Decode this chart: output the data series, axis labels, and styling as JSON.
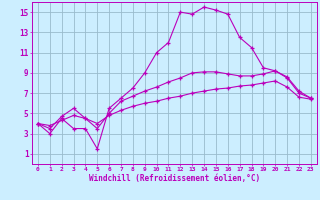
{
  "xlabel": "Windchill (Refroidissement éolien,°C)",
  "bg_color": "#cceeff",
  "grid_color": "#99bbcc",
  "line_color": "#bb00bb",
  "x_ticks": [
    0,
    1,
    2,
    3,
    4,
    5,
    6,
    7,
    8,
    9,
    10,
    11,
    12,
    13,
    14,
    15,
    16,
    17,
    18,
    19,
    20,
    21,
    22,
    23
  ],
  "y_ticks": [
    1,
    3,
    5,
    7,
    9,
    11,
    13,
    15
  ],
  "ylim": [
    0.0,
    16.0
  ],
  "xlim": [
    -0.5,
    23.5
  ],
  "line1_x": [
    0,
    1,
    2,
    3,
    4,
    5,
    6,
    7,
    8,
    9,
    10,
    11,
    12,
    13,
    14,
    15,
    16,
    17,
    18,
    19,
    20,
    21,
    22,
    23
  ],
  "line1_y": [
    4.0,
    3.0,
    4.5,
    3.5,
    3.5,
    1.5,
    5.5,
    6.5,
    7.5,
    9.0,
    11.0,
    12.0,
    15.0,
    14.8,
    15.5,
    15.2,
    14.8,
    12.5,
    11.5,
    9.5,
    9.2,
    8.5,
    7.0,
    6.5
  ],
  "line2_x": [
    0,
    1,
    2,
    3,
    4,
    5,
    6,
    7,
    8,
    9,
    10,
    11,
    12,
    13,
    14,
    15,
    16,
    17,
    18,
    19,
    20,
    21,
    22,
    23
  ],
  "line2_y": [
    4.0,
    3.5,
    4.7,
    5.5,
    4.5,
    3.5,
    5.0,
    6.2,
    6.7,
    7.2,
    7.6,
    8.1,
    8.5,
    9.0,
    9.1,
    9.1,
    8.9,
    8.7,
    8.7,
    8.9,
    9.2,
    8.6,
    7.2,
    6.5
  ],
  "line3_x": [
    0,
    1,
    2,
    3,
    4,
    5,
    6,
    7,
    8,
    9,
    10,
    11,
    12,
    13,
    14,
    15,
    16,
    17,
    18,
    19,
    20,
    21,
    22,
    23
  ],
  "line3_y": [
    4.0,
    3.8,
    4.3,
    4.8,
    4.5,
    4.0,
    4.8,
    5.3,
    5.7,
    6.0,
    6.2,
    6.5,
    6.7,
    7.0,
    7.2,
    7.4,
    7.5,
    7.7,
    7.8,
    8.0,
    8.2,
    7.6,
    6.6,
    6.4
  ],
  "tick_fontsize_x": 4.5,
  "tick_fontsize_y": 5.5,
  "xlabel_fontsize": 5.5
}
